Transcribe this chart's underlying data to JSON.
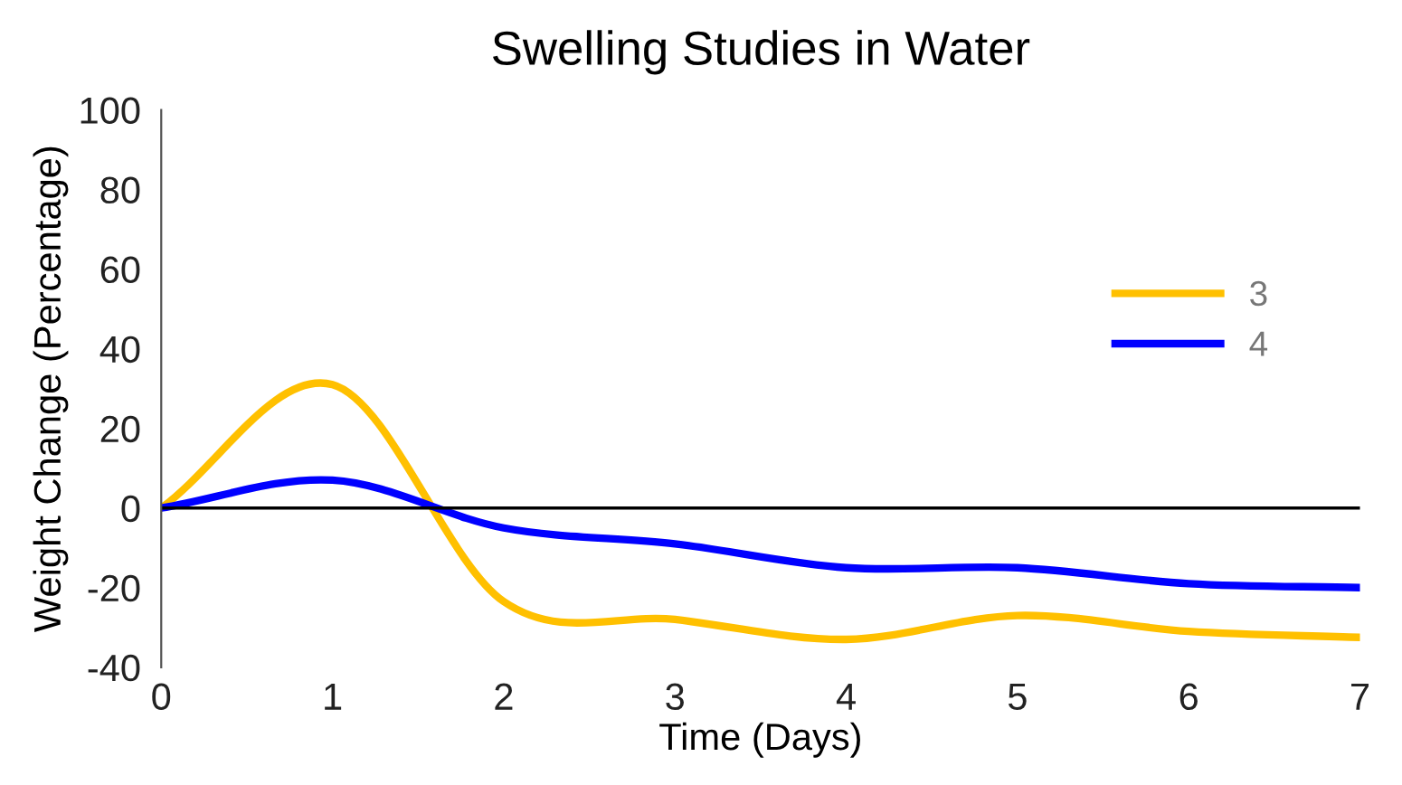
{
  "chart_data": {
    "type": "line",
    "title": "Swelling Studies in Water",
    "xlabel": "Time (Days)",
    "ylabel": "Weight Change (Percentage)",
    "x": [
      0,
      1,
      2,
      3,
      4,
      5,
      6,
      7
    ],
    "series": [
      {
        "name": "3",
        "color": "#ffc000",
        "values": [
          0,
          31,
          -23.5,
          -28,
          -33,
          -27,
          -31,
          -32.5
        ]
      },
      {
        "name": "4",
        "color": "#0000ff",
        "values": [
          0,
          7,
          -5,
          -9,
          -15,
          -15,
          -19,
          -20
        ]
      }
    ],
    "xlim": [
      0,
      7
    ],
    "xticks": [
      0,
      1,
      2,
      3,
      4,
      5,
      6,
      7
    ],
    "ylim": [
      -40,
      100
    ],
    "yticks": [
      -40,
      -20,
      0,
      20,
      40,
      60,
      80,
      100
    ],
    "ref_lines": [
      {
        "axis": "y",
        "value": 0,
        "color": "#000000",
        "line_style": "solid"
      }
    ],
    "grid": false,
    "legend": "right",
    "marker": "none",
    "line_style": "solid"
  }
}
